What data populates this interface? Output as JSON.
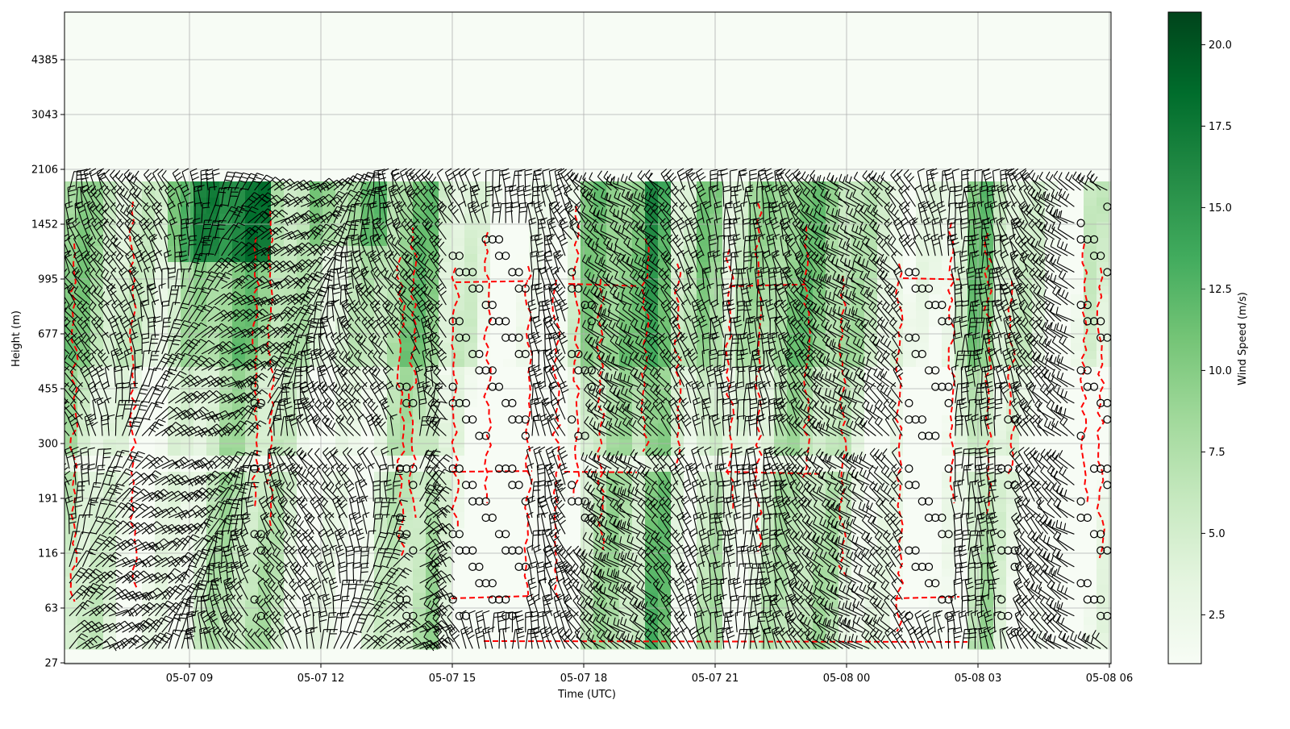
{
  "chart_data": {
    "type": "heatmap",
    "title": "",
    "xlabel": "Time (UTC)",
    "ylabel": "Height (m)",
    "x_tick_labels": [
      "05-07 09",
      "05-07 12",
      "05-07 15",
      "05-07 18",
      "05-07 21",
      "05-08 00",
      "05-08 03",
      "05-08 06"
    ],
    "y_tick_labels": [
      "27",
      "63",
      "116",
      "191",
      "300",
      "455",
      "677",
      "995",
      "1452",
      "2106",
      "3043",
      "4385"
    ],
    "xlim": [
      "2024-05-07T06:00Z",
      "2024-05-08T06:00Z"
    ],
    "grid": true,
    "colorbar": {
      "label": "Wind Speed (m/s)",
      "colormap": "Greens",
      "ticks": [
        "2.5",
        "5.0",
        "7.5",
        "10.0",
        "12.5",
        "15.0",
        "17.5",
        "20.0"
      ],
      "range": [
        1.0,
        21.0
      ],
      "colors": [
        "#f7fcf5",
        "#e5f5e0",
        "#c7e9c0",
        "#a1d99b",
        "#74c476",
        "#41ab5d",
        "#238b45",
        "#006d2c",
        "#00441b"
      ]
    },
    "series": [
      {
        "name": "Wind Speed",
        "kind": "heatmap"
      },
      {
        "name": "Wind barbs",
        "kind": "barbs",
        "color": "#000000"
      },
      {
        "name": "Calm",
        "kind": "circle-markers",
        "color": "#000000"
      },
      {
        "name": "Contour",
        "kind": "dashed-contour",
        "color": "#ff0000"
      }
    ]
  }
}
